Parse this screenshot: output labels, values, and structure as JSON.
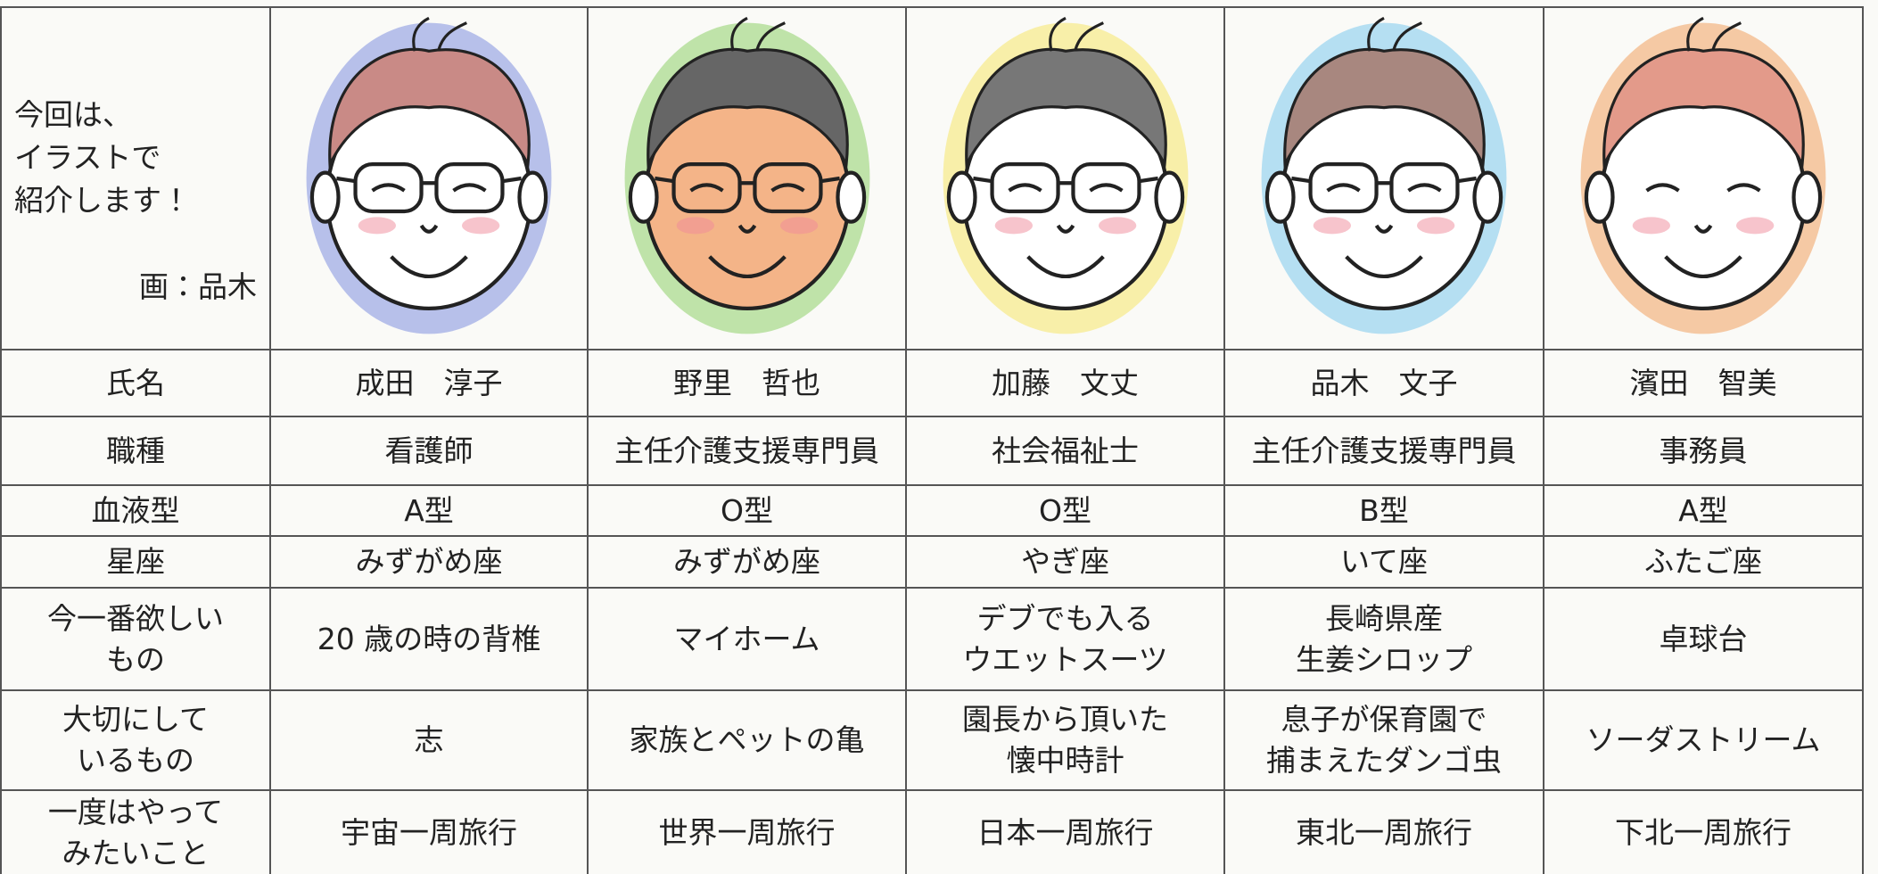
{
  "intro": {
    "lines": [
      "今回は、",
      "イラストで",
      "紹介します！"
    ],
    "credit": "画：品木"
  },
  "table": {
    "rows": [
      {
        "label": [
          "氏名"
        ],
        "cells": [
          [
            "成田　淳子"
          ],
          [
            "野里　哲也"
          ],
          [
            "加藤　文丈"
          ],
          [
            "品木　文子"
          ],
          [
            "濱田　智美"
          ]
        ]
      },
      {
        "label": [
          "職種"
        ],
        "cells": [
          [
            "看護師"
          ],
          [
            "主任介護支援専門員"
          ],
          [
            "社会福祉士"
          ],
          [
            "主任介護支援専門員"
          ],
          [
            "事務員"
          ]
        ]
      },
      {
        "label": [
          "血液型"
        ],
        "cells": [
          [
            "A型"
          ],
          [
            "O型"
          ],
          [
            "O型"
          ],
          [
            "B型"
          ],
          [
            "A型"
          ]
        ]
      },
      {
        "label": [
          "星座"
        ],
        "cells": [
          [
            "みずがめ座"
          ],
          [
            "みずがめ座"
          ],
          [
            "やぎ座"
          ],
          [
            "いて座"
          ],
          [
            "ふたご座"
          ]
        ]
      },
      {
        "label": [
          "今一番欲しい",
          "もの"
        ],
        "cells": [
          [
            "20 歳の時の背椎"
          ],
          [
            "マイホーム"
          ],
          [
            "デブでも入る",
            "ウエットスーツ"
          ],
          [
            "長崎県産",
            "生姜シロップ"
          ],
          [
            "卓球台"
          ]
        ]
      },
      {
        "label": [
          "大切にして",
          "いるもの"
        ],
        "cells": [
          [
            "志"
          ],
          [
            "家族とペットの亀"
          ],
          [
            "園長から頂いた",
            "懐中時計"
          ],
          [
            "息子が保育園で",
            "捕まえたダンゴ虫"
          ],
          [
            "ソーダストリーム"
          ]
        ]
      },
      {
        "label": [
          "一度はやって",
          "みたいこと"
        ],
        "cells": [
          [
            "宇宙一周旅行"
          ],
          [
            "世界一周旅行"
          ],
          [
            "日本一周旅行"
          ],
          [
            "東北一周旅行"
          ],
          [
            "下北一周旅行"
          ]
        ]
      }
    ]
  }
}
